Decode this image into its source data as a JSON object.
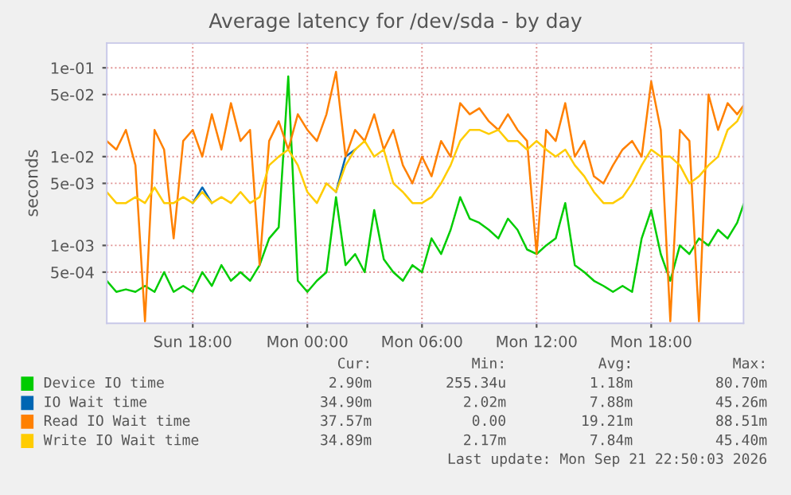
{
  "chart_data": {
    "type": "line",
    "title": "Average latency for /dev/sda - by day",
    "ylabel": "seconds",
    "x": [
      "2026-09-20T13:30",
      "2026-09-20T14:00",
      "2026-09-20T14:30",
      "2026-09-20T15:00",
      "2026-09-20T15:30",
      "2026-09-20T16:00",
      "2026-09-20T16:30",
      "2026-09-20T17:00",
      "2026-09-20T17:30",
      "2026-09-20T18:00",
      "2026-09-20T18:30",
      "2026-09-20T19:00",
      "2026-09-20T19:30",
      "2026-09-20T20:00",
      "2026-09-20T20:30",
      "2026-09-20T21:00",
      "2026-09-20T21:30",
      "2026-09-20T22:00",
      "2026-09-20T22:30",
      "2026-09-20T23:00",
      "2026-09-20T23:30",
      "2026-09-21T00:00",
      "2026-09-21T00:30",
      "2026-09-21T01:00",
      "2026-09-21T01:30",
      "2026-09-21T02:00",
      "2026-09-21T02:30",
      "2026-09-21T03:00",
      "2026-09-21T03:30",
      "2026-09-21T04:00",
      "2026-09-21T04:30",
      "2026-09-21T05:00",
      "2026-09-21T05:30",
      "2026-09-21T06:00",
      "2026-09-21T06:30",
      "2026-09-21T07:00",
      "2026-09-21T07:30",
      "2026-09-21T08:00",
      "2026-09-21T08:30",
      "2026-09-21T09:00",
      "2026-09-21T09:30",
      "2026-09-21T10:00",
      "2026-09-21T10:30",
      "2026-09-21T11:00",
      "2026-09-21T11:30",
      "2026-09-21T12:00",
      "2026-09-21T12:30",
      "2026-09-21T13:00",
      "2026-09-21T13:30",
      "2026-09-21T14:00",
      "2026-09-21T14:30",
      "2026-09-21T15:00",
      "2026-09-21T15:30",
      "2026-09-21T16:00",
      "2026-09-21T16:30",
      "2026-09-21T17:00",
      "2026-09-21T17:30",
      "2026-09-21T18:00",
      "2026-09-21T18:30",
      "2026-09-21T19:00",
      "2026-09-21T19:30",
      "2026-09-21T20:00",
      "2026-09-21T20:30",
      "2026-09-21T21:00",
      "2026-09-21T21:30",
      "2026-09-21T22:00",
      "2026-09-21T22:30",
      "2026-09-21T22:50"
    ],
    "series": [
      {
        "name": "Device IO time",
        "color": "#00cc00",
        "values": [
          0.0004,
          0.0003,
          0.00032,
          0.0003,
          0.00035,
          0.0003,
          0.0005,
          0.0003,
          0.00035,
          0.0003,
          0.0005,
          0.00035,
          0.0006,
          0.0004,
          0.0005,
          0.0004,
          0.0006,
          0.0012,
          0.0016,
          0.08,
          0.0004,
          0.0003,
          0.0004,
          0.0005,
          0.0035,
          0.0006,
          0.0008,
          0.0005,
          0.0025,
          0.0007,
          0.0005,
          0.0004,
          0.0006,
          0.0005,
          0.0012,
          0.0008,
          0.0015,
          0.0035,
          0.002,
          0.0018,
          0.0015,
          0.0012,
          0.002,
          0.0015,
          0.0009,
          0.0008,
          0.001,
          0.0012,
          0.003,
          0.0006,
          0.0005,
          0.0004,
          0.00035,
          0.0003,
          0.00035,
          0.0003,
          0.0012,
          0.0025,
          0.0008,
          0.0004,
          0.001,
          0.0008,
          0.0012,
          0.001,
          0.0015,
          0.0012,
          0.0018,
          0.0029
        ]
      },
      {
        "name": "IO Wait time",
        "color": "#0066b3",
        "values": [
          null,
          null,
          null,
          null,
          null,
          null,
          null,
          null,
          null,
          0.003,
          0.0045,
          0.003,
          null,
          null,
          null,
          null,
          null,
          null,
          null,
          null,
          null,
          null,
          null,
          null,
          0.004,
          0.01,
          0.012,
          null,
          null,
          null,
          null,
          null,
          null,
          null,
          null,
          null,
          null,
          null,
          null,
          null,
          null,
          null,
          null,
          null,
          null,
          null,
          null,
          null,
          null,
          null,
          null,
          null,
          null,
          null,
          null,
          null,
          null,
          null,
          null,
          null,
          null,
          null,
          null,
          null,
          null,
          null,
          null,
          null
        ]
      },
      {
        "name": "Read IO Wait time",
        "color": "#ff8000",
        "values": [
          0.015,
          0.012,
          0.02,
          0.008,
          0.00014,
          0.02,
          0.012,
          0.0012,
          0.015,
          0.02,
          0.01,
          0.03,
          0.012,
          0.04,
          0.015,
          0.02,
          0.0006,
          0.015,
          0.025,
          0.012,
          0.03,
          0.02,
          0.015,
          0.03,
          0.09,
          0.01,
          0.02,
          0.015,
          0.03,
          0.012,
          0.02,
          0.008,
          0.005,
          0.01,
          0.006,
          0.015,
          0.01,
          0.04,
          0.03,
          0.035,
          0.025,
          0.02,
          0.03,
          0.02,
          0.015,
          0.0008,
          0.02,
          0.015,
          0.04,
          0.01,
          0.015,
          0.006,
          0.005,
          0.008,
          0.012,
          0.015,
          0.01,
          0.07,
          0.02,
          0.00014,
          0.02,
          0.015,
          0.00014,
          0.05,
          0.02,
          0.04,
          0.03,
          0.03757
        ]
      },
      {
        "name": "Write IO Wait time",
        "color": "#ffcc00",
        "values": [
          0.004,
          0.003,
          0.003,
          0.0035,
          0.003,
          0.0045,
          0.003,
          0.003,
          0.0035,
          0.003,
          0.004,
          0.003,
          0.0035,
          0.003,
          0.004,
          0.003,
          0.0035,
          0.008,
          0.01,
          0.012,
          0.008,
          0.004,
          0.003,
          0.005,
          0.004,
          0.008,
          0.012,
          0.015,
          0.01,
          0.012,
          0.005,
          0.004,
          0.003,
          0.003,
          0.0035,
          0.005,
          0.008,
          0.015,
          0.02,
          0.02,
          0.018,
          0.02,
          0.015,
          0.015,
          0.012,
          0.015,
          0.012,
          0.01,
          0.012,
          0.008,
          0.006,
          0.004,
          0.003,
          0.003,
          0.0035,
          0.005,
          0.008,
          0.012,
          0.01,
          0.01,
          0.008,
          0.005,
          0.006,
          0.008,
          0.01,
          0.02,
          0.025,
          0.03489
        ]
      }
    ],
    "log": true,
    "ylim": [
      0.000133,
      0.19
    ],
    "yticks": [
      {
        "value": 0.1,
        "label": "1e-01"
      },
      {
        "value": 0.05,
        "label": "5e-02"
      },
      {
        "value": 0.01,
        "label": "1e-02"
      },
      {
        "value": 0.005,
        "label": "5e-03"
      },
      {
        "value": 0.001,
        "label": "1e-03"
      },
      {
        "value": 0.0005,
        "label": "5e-04"
      }
    ],
    "xlim": [
      "2026-09-20T13:30",
      "2026-09-21T22:50"
    ],
    "xticks": [
      {
        "value": "2026-09-20T18:00",
        "label": "Sun 18:00"
      },
      {
        "value": "2026-09-21T00:00",
        "label": "Mon 00:00"
      },
      {
        "value": "2026-09-21T06:00",
        "label": "Mon 06:00"
      },
      {
        "value": "2026-09-21T12:00",
        "label": "Mon 12:00"
      },
      {
        "value": "2026-09-21T18:00",
        "label": "Mon 18:00"
      }
    ],
    "grid": true,
    "legend": "bottom",
    "marker": "none",
    "line_style": "solid",
    "annotations": [
      "Cur:",
      "Min:",
      "Avg:",
      "Max:",
      "2.90m",
      "255.34u",
      "1.18m",
      "80.70m",
      "34.90m",
      "2.02m",
      "7.88m",
      "45.26m",
      "37.57m",
      "0.00",
      "19.21m",
      "88.51m",
      "34.89m",
      "2.17m",
      "7.84m",
      "45.40m",
      "Last update: Mon Sep 21 22:50:03 2026"
    ]
  }
}
